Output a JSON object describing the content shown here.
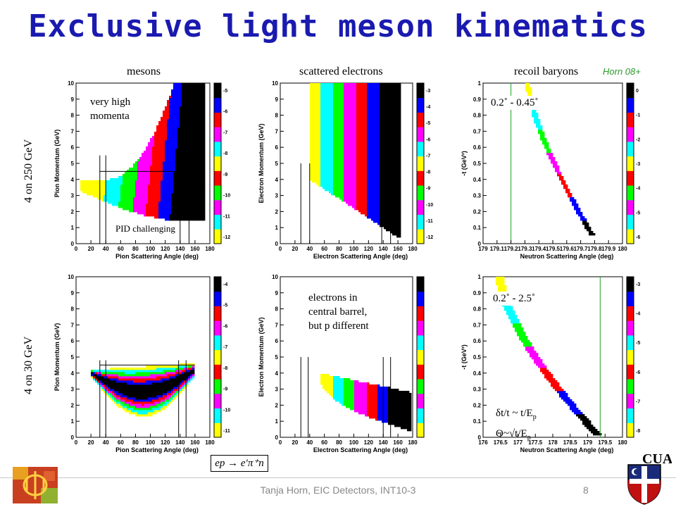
{
  "slide": {
    "title": "Exclusive light meson kinematics",
    "credit": "Horn 08+",
    "footer": "Tanja Horn, EIC Detectors, INT10-3",
    "page_number": "8",
    "reaction": "ep → e′π⁺n",
    "logo_right_text": "CUA"
  },
  "columns": [
    "mesons",
    "scattered electrons",
    "recoil baryons"
  ],
  "rows": [
    "4 on 250 GeV",
    "4 on 30 GeV"
  ],
  "annotations": {
    "very_high_momenta": [
      "very high",
      "momenta"
    ],
    "pid_challenging": "PID challenging",
    "electrons_barrel": [
      "electrons in",
      "central barrel,",
      "but p different"
    ],
    "angle_range_top": "0.2˚ - 0.45˚",
    "angle_range_bottom": "0.2˚ - 2.5˚",
    "resolution_t": "δt/t ~ t/E",
    "resolution_theta": "Θ~√t/E",
    "subscript_p": "p"
  },
  "panels": {
    "p11": {
      "xlabel": "Pion Scattering Angle (deg)",
      "ylabel": "Pion Momentum (GeV)",
      "xticks": [
        "0",
        "20",
        "40",
        "60",
        "80",
        "100",
        "120",
        "140",
        "160",
        "180"
      ],
      "yticks": [
        "0",
        "1",
        "2",
        "3",
        "4",
        "5",
        "6",
        "7",
        "8",
        "9",
        "10"
      ],
      "zticks": [
        "-5",
        "-6",
        "-7",
        "-8",
        "-9",
        "-10",
        "-11",
        "-12"
      ]
    },
    "p12": {
      "xlabel": "Electron Scattering Angle (deg)",
      "ylabel": "Electron Momentum (GeV)",
      "xticks": [
        "0",
        "20",
        "40",
        "60",
        "80",
        "100",
        "120",
        "140",
        "160",
        "180"
      ],
      "yticks": [
        "0",
        "1",
        "2",
        "3",
        "4",
        "5",
        "6",
        "7",
        "8",
        "9",
        "10"
      ],
      "zticks": [
        "-3",
        "-4",
        "-5",
        "-6",
        "-7",
        "-8",
        "-9",
        "-10",
        "-11",
        "-12"
      ]
    },
    "p13": {
      "xlabel": "Neutron Scattering Angle (deg)",
      "ylabel": "-t (GeV²)",
      "xticks": [
        "179",
        "179.1",
        "179.2",
        "179.3",
        "179.4",
        "179.5",
        "179.6",
        "179.7",
        "179.8",
        "179.9",
        "180"
      ],
      "yticks": [
        "0",
        "0.1",
        "0.2",
        "0.3",
        "0.4",
        "0.5",
        "0.6",
        "0.7",
        "0.8",
        "0.9",
        "1"
      ],
      "zticks": [
        "0",
        "-1",
        "-2",
        "-3",
        "-4",
        "-5",
        "-6"
      ]
    },
    "p21": {
      "xlabel": "Pion Scattering Angle (deg)",
      "ylabel": "Pion Momentum (GeV)",
      "xticks": [
        "0",
        "20",
        "40",
        "60",
        "80",
        "100",
        "120",
        "140",
        "160",
        "180"
      ],
      "yticks": [
        "0",
        "1",
        "2",
        "3",
        "4",
        "5",
        "6",
        "7",
        "8",
        "9",
        "10"
      ],
      "zticks": [
        "-4",
        "-5",
        "-6",
        "-7",
        "-8",
        "-9",
        "-10",
        "-11"
      ]
    },
    "p22": {
      "xlabel": "Electron Scattering Angle (deg)",
      "ylabel": "Electron Momentum (GeV)",
      "xticks": [
        "0",
        "20",
        "40",
        "60",
        "80",
        "100",
        "120",
        "140",
        "160",
        "180"
      ],
      "yticks": [
        "0",
        "1",
        "2",
        "3",
        "4",
        "5",
        "6",
        "7",
        "8",
        "9",
        "10"
      ],
      "zticks": []
    },
    "p23": {
      "xlabel": "Neutron Scattering Angle (deg)",
      "ylabel": "-t (GeV²)",
      "xticks": [
        "176",
        "176.5",
        "177",
        "177.5",
        "178",
        "178.5",
        "179",
        "179.5",
        "180"
      ],
      "yticks": [
        "0",
        "0.1",
        "0.2",
        "0.3",
        "0.4",
        "0.5",
        "0.6",
        "0.7",
        "0.8",
        "0.9",
        "1"
      ],
      "zticks": [
        "-3",
        "-4",
        "-5",
        "-6",
        "-7",
        "-8"
      ]
    }
  },
  "colors": {
    "title": "#1a1ab0",
    "palette": [
      "#ffff00",
      "#00ffff",
      "#ff00ff",
      "#00ff00",
      "#ff0000",
      "#ffff00",
      "#00ffff",
      "#ff00ff",
      "#ff0000",
      "#0000ff",
      "#000000"
    ]
  }
}
